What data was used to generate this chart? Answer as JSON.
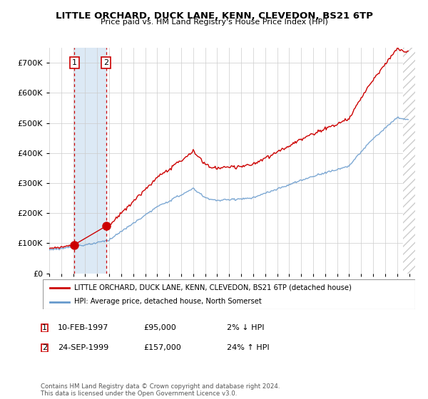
{
  "title": "LITTLE ORCHARD, DUCK LANE, KENN, CLEVEDON, BS21 6TP",
  "subtitle": "Price paid vs. HM Land Registry's House Price Index (HPI)",
  "ylim": [
    0,
    750000
  ],
  "yticks": [
    0,
    100000,
    200000,
    300000,
    400000,
    500000,
    600000,
    700000
  ],
  "x_start_year": 1995,
  "x_end_year": 2025,
  "sale1_date": 1997.1,
  "sale1_price": 95000,
  "sale2_date": 1999.73,
  "sale2_price": 157000,
  "legend_line1": "LITTLE ORCHARD, DUCK LANE, KENN, CLEVEDON, BS21 6TP (detached house)",
  "legend_line2": "HPI: Average price, detached house, North Somerset",
  "footer": "Contains HM Land Registry data © Crown copyright and database right 2024.\nThis data is licensed under the Open Government Licence v3.0.",
  "line_color": "#cc0000",
  "hpi_color": "#6699cc",
  "shade_color": "#dce9f5",
  "grid_color": "#cccccc",
  "sale_dot_color": "#cc0000",
  "sale_vline_color": "#cc0000",
  "hatch_color": "#cccccc"
}
